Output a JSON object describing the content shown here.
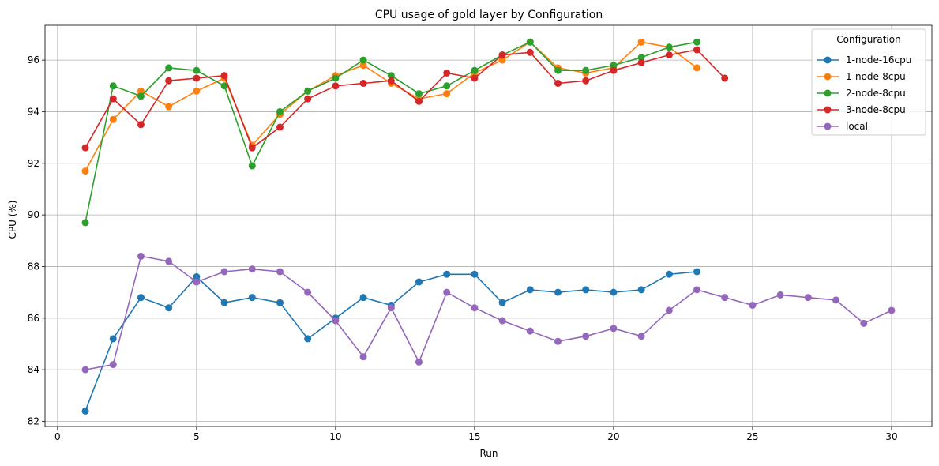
{
  "chart_data": {
    "type": "line",
    "title": "CPU usage of gold layer by Configuration",
    "xlabel": "Run",
    "ylabel": "CPU (%)",
    "xlim": [
      -0.45,
      31.45
    ],
    "ylim": [
      81.8,
      97.35
    ],
    "xticks": [
      0,
      5,
      10,
      15,
      20,
      25,
      30
    ],
    "yticks": [
      82,
      84,
      86,
      88,
      90,
      92,
      94,
      96
    ],
    "grid": true,
    "legend": {
      "title": "Configuration",
      "placement": "top-right"
    },
    "series": [
      {
        "name": "1-node-16cpu",
        "color": "#1f77b4",
        "x": [
          1,
          2,
          3,
          4,
          5,
          6,
          7,
          8,
          9,
          10,
          11,
          12,
          13,
          14,
          15,
          16,
          17,
          18,
          19,
          20,
          21,
          22,
          23
        ],
        "y": [
          82.4,
          85.2,
          86.8,
          86.4,
          87.6,
          86.6,
          86.8,
          86.6,
          85.2,
          86.0,
          86.8,
          86.5,
          87.4,
          87.7,
          87.7,
          86.6,
          87.1,
          87.0,
          87.1,
          87.0,
          87.1,
          87.7,
          87.8
        ]
      },
      {
        "name": "1-node-8cpu",
        "color": "#ff7f0e",
        "x": [
          1,
          2,
          3,
          4,
          5,
          6,
          7,
          8,
          9,
          10,
          11,
          12,
          13,
          14,
          15,
          16,
          17,
          18,
          19,
          20,
          21,
          22,
          23
        ],
        "y": [
          91.7,
          93.7,
          94.8,
          94.2,
          94.8,
          95.3,
          92.7,
          93.9,
          94.8,
          95.4,
          95.8,
          95.1,
          94.5,
          94.7,
          95.5,
          96.0,
          96.7,
          95.7,
          95.5,
          95.7,
          96.7,
          96.5,
          95.7
        ]
      },
      {
        "name": "2-node-8cpu",
        "color": "#2ca02c",
        "x": [
          1,
          2,
          3,
          4,
          5,
          6,
          7,
          8,
          9,
          10,
          11,
          12,
          13,
          14,
          15,
          16,
          17,
          18,
          19,
          20,
          21,
          22,
          23
        ],
        "y": [
          89.7,
          95.0,
          94.6,
          95.7,
          95.6,
          95.0,
          91.9,
          94.0,
          94.8,
          95.3,
          96.0,
          95.4,
          94.7,
          95.0,
          95.6,
          96.2,
          96.7,
          95.6,
          95.6,
          95.8,
          96.1,
          96.5,
          96.7
        ]
      },
      {
        "name": "3-node-8cpu",
        "color": "#d62728",
        "x": [
          1,
          2,
          3,
          4,
          5,
          6,
          7,
          8,
          9,
          10,
          11,
          12,
          13,
          14,
          15,
          16,
          17,
          18,
          19,
          20,
          21,
          22,
          23,
          24
        ],
        "y": [
          92.6,
          94.5,
          93.5,
          95.2,
          95.3,
          95.4,
          92.6,
          93.4,
          94.5,
          95.0,
          95.1,
          95.2,
          94.4,
          95.5,
          95.3,
          96.2,
          96.3,
          95.1,
          95.2,
          95.6,
          95.9,
          96.2,
          96.4,
          95.3
        ]
      },
      {
        "name": "local",
        "color": "#9467bd",
        "x": [
          1,
          2,
          3,
          4,
          5,
          6,
          7,
          8,
          9,
          10,
          11,
          12,
          13,
          14,
          15,
          16,
          17,
          18,
          19,
          20,
          21,
          22,
          23,
          24,
          25,
          26,
          27,
          28,
          29,
          30
        ],
        "y": [
          84.0,
          84.2,
          88.4,
          88.2,
          87.4,
          87.8,
          87.9,
          87.8,
          87.0,
          85.9,
          84.5,
          86.4,
          84.3,
          87.0,
          86.4,
          85.9,
          85.5,
          85.1,
          85.3,
          85.6,
          85.3,
          86.3,
          87.1,
          86.8,
          86.5,
          86.9,
          86.8,
          86.7,
          85.8,
          86.3
        ]
      }
    ]
  }
}
